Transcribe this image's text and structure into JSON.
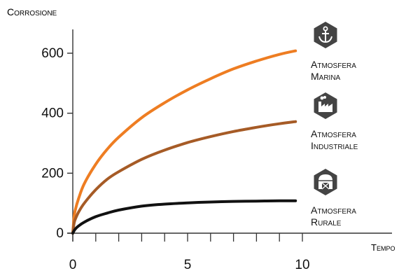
{
  "chart_data": {
    "type": "line",
    "ylabel": "Corrosione",
    "xlabel": "Tempo",
    "xlim": [
      0,
      10.5
    ],
    "ylim": [
      0,
      650
    ],
    "x_ticks": [
      0,
      5,
      10
    ],
    "y_ticks": [
      0,
      200,
      400,
      600
    ],
    "x_minor_step": 1,
    "grid": false,
    "series": [
      {
        "name": "Atmosfera Marina",
        "color": "#ee7d22",
        "icon": "anchor-icon",
        "label_lines": [
          "Atmosfera",
          "Marina"
        ],
        "x": [
          0,
          0.05,
          0.1,
          0.25,
          0.5,
          1,
          1.5,
          2,
          3,
          4,
          5,
          6,
          7,
          8,
          9,
          9.7
        ],
        "y": [
          0,
          50,
          75,
          115,
          165,
          230,
          280,
          320,
          385,
          435,
          478,
          515,
          548,
          574,
          596,
          608
        ]
      },
      {
        "name": "Atmosfera Industriale",
        "color": "#a65b26",
        "icon": "factory-icon",
        "label_lines": [
          "Atmosfera",
          "Industriale"
        ],
        "x": [
          0,
          0.05,
          0.1,
          0.25,
          0.5,
          1,
          1.5,
          2,
          3,
          4,
          5,
          6,
          7,
          8,
          9,
          9.7
        ],
        "y": [
          0,
          30,
          45,
          70,
          100,
          145,
          180,
          205,
          246,
          277,
          302,
          322,
          339,
          353,
          365,
          372
        ]
      },
      {
        "name": "Atmosfera Rurale",
        "color": "#111111",
        "icon": "barn-icon",
        "label_lines": [
          "Atmosfera",
          "Rurale"
        ],
        "x": [
          0,
          0.1,
          0.25,
          0.5,
          1,
          1.5,
          2,
          3,
          4,
          5,
          6,
          7,
          8,
          9,
          9.7
        ],
        "y": [
          0,
          13,
          24,
          37,
          55,
          67,
          77,
          90,
          97,
          101,
          104,
          106,
          107,
          108,
          108
        ]
      }
    ]
  }
}
